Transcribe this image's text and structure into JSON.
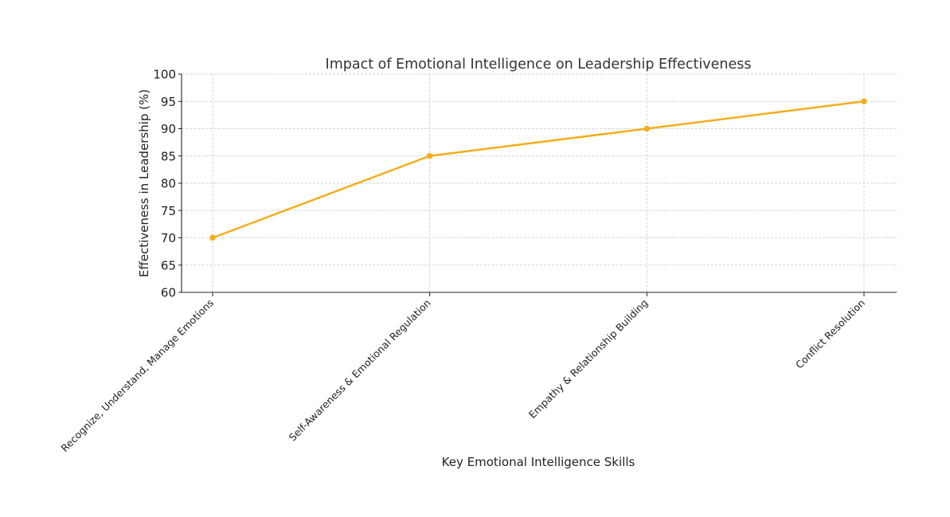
{
  "chart_data": {
    "type": "line",
    "title": "Impact of Emotional Intelligence on Leadership Effectiveness",
    "xlabel": "Key Emotional Intelligence Skills",
    "ylabel": "Effectiveness in Leadership (%)",
    "categories": [
      "Recognize, Understand, Manage Emotions",
      "Self-Awareness & Emotional Regulation",
      "Empathy & Relationship Building",
      "Conflict Resolution"
    ],
    "series": [
      {
        "values": [
          70,
          85,
          90,
          95
        ],
        "color": "#f5ad1b",
        "marker": "circle"
      }
    ],
    "ylim": [
      60,
      100
    ],
    "yticks": [
      60,
      65,
      70,
      75,
      80,
      85,
      90,
      95,
      100
    ],
    "grid": true,
    "xtick_rotation_deg": 45
  }
}
